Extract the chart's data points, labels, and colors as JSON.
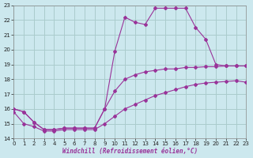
{
  "xlabel": "Windchill (Refroidissement éolien,°C)",
  "bg_color": "#cce8ee",
  "grid_color": "#aacccc",
  "line_color": "#993399",
  "xlim_min": 0,
  "xlim_max": 23,
  "ylim_min": 14,
  "ylim_max": 23,
  "xticks": [
    0,
    1,
    2,
    3,
    4,
    5,
    6,
    7,
    8,
    9,
    10,
    11,
    12,
    13,
    14,
    15,
    16,
    17,
    18,
    19,
    20,
    21,
    22,
    23
  ],
  "yticks": [
    14,
    15,
    16,
    17,
    18,
    19,
    20,
    21,
    22,
    23
  ],
  "curve1_x": [
    0,
    1,
    2,
    3,
    4,
    5,
    6,
    7,
    8,
    9,
    10,
    11,
    12,
    13,
    14,
    15,
    16,
    17,
    18,
    19,
    20,
    21,
    22,
    23
  ],
  "curve1_y": [
    16.0,
    15.8,
    15.1,
    14.6,
    14.6,
    14.7,
    14.7,
    14.7,
    14.7,
    16.0,
    19.9,
    22.2,
    21.85,
    21.7,
    22.8,
    22.8,
    22.8,
    22.8,
    21.5,
    20.7,
    19.0,
    18.9,
    18.9,
    18.9
  ],
  "curve2_x": [
    0,
    1,
    2,
    3,
    4,
    5,
    6,
    7,
    8,
    9,
    10,
    11,
    12,
    13,
    14,
    15,
    16,
    17,
    18,
    19,
    20,
    21,
    22,
    23
  ],
  "curve2_y": [
    16.0,
    15.8,
    15.1,
    14.6,
    14.6,
    14.7,
    14.7,
    14.7,
    14.7,
    16.0,
    17.2,
    18.0,
    18.3,
    18.5,
    18.6,
    18.7,
    18.7,
    18.8,
    18.8,
    18.85,
    18.85,
    18.9,
    18.9,
    18.9
  ],
  "curve3_x": [
    0,
    1,
    2,
    3,
    4,
    5,
    6,
    7,
    8,
    9,
    10,
    11,
    12,
    13,
    14,
    15,
    16,
    17,
    18,
    19,
    20,
    21,
    22,
    23
  ],
  "curve3_y": [
    15.8,
    15.0,
    14.8,
    14.5,
    14.5,
    14.6,
    14.6,
    14.6,
    14.6,
    15.0,
    15.5,
    16.0,
    16.3,
    16.6,
    16.9,
    17.1,
    17.3,
    17.5,
    17.65,
    17.75,
    17.8,
    17.85,
    17.9,
    17.8
  ]
}
